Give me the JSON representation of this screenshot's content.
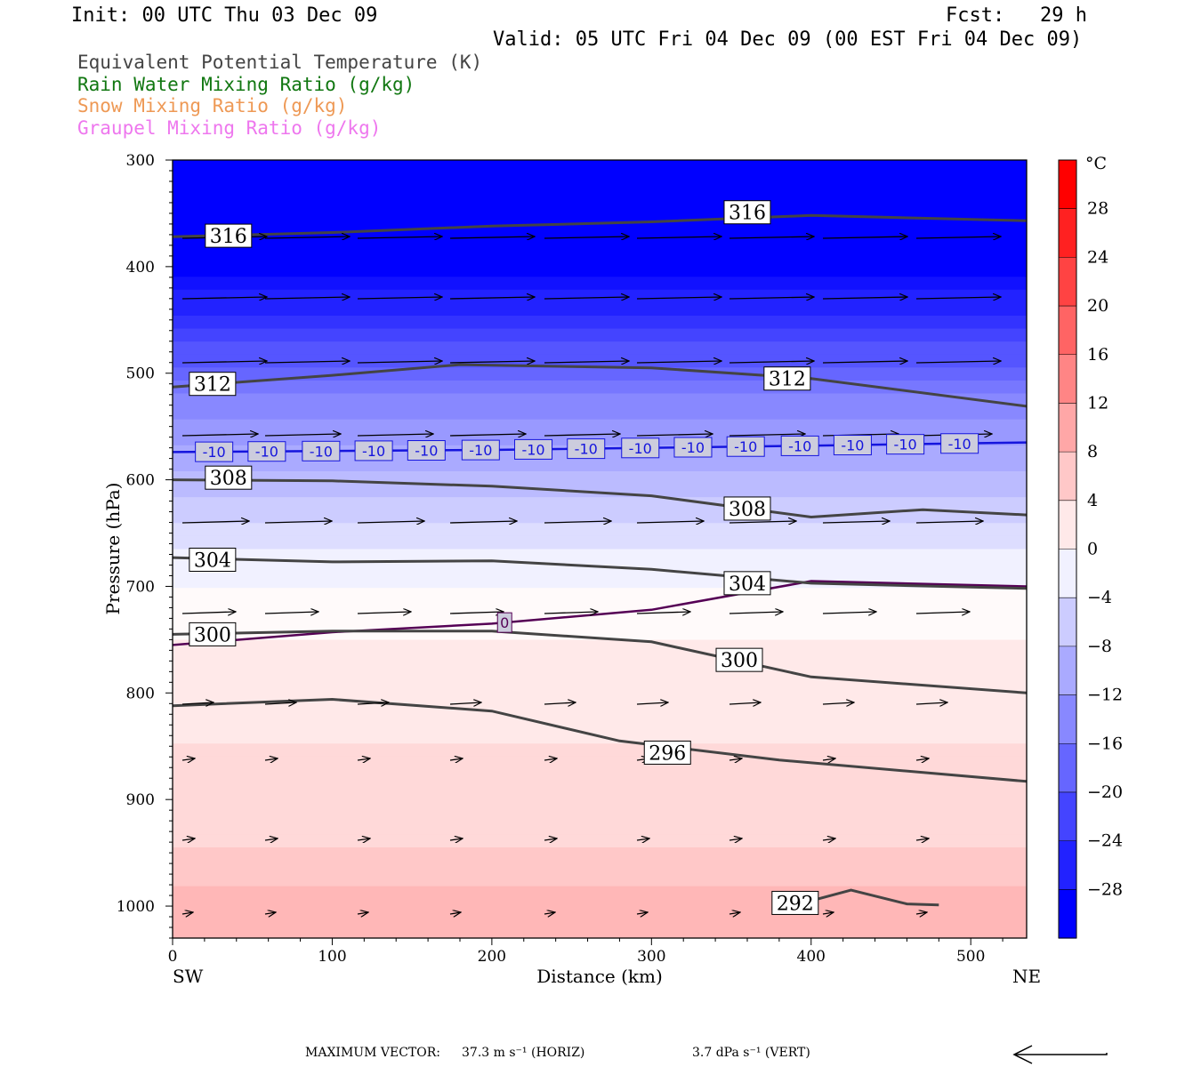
{
  "header": {
    "init": "Init: 00 UTC Thu 03 Dec 09",
    "fcst": "Fcst:   29 h",
    "valid": "Valid: 05 UTC Fri 04 Dec 09 (00 EST Fri 04 Dec 09)"
  },
  "legend": [
    {
      "label": "Equivalent Potential Temperature (K)",
      "color": "#444444"
    },
    {
      "label": "Rain Water Mixing Ratio (g/kg)",
      "color": "#117711"
    },
    {
      "label": "Snow Mixing Ratio (g/kg)",
      "color": "#ee9955"
    },
    {
      "label": "Graupel Mixing Ratio (g/kg)",
      "color": "#ee77ee"
    }
  ],
  "footer": {
    "max_vector_label": "MAXIMUM VECTOR:",
    "horiz": "37.3 m s⁻¹ (HORIZ)",
    "vert": "3.7 dPa s⁻¹ (VERT)"
  },
  "chart_data": {
    "type": "heatmap",
    "xlabel": "Distance (km)",
    "ylabel": "Pressure (hPa)",
    "xlim": [
      0,
      535
    ],
    "ylim": [
      1030,
      300
    ],
    "x_ticks": [
      0,
      100,
      200,
      300,
      400,
      500
    ],
    "y_ticks": [
      300,
      400,
      500,
      600,
      700,
      800,
      900,
      1000
    ],
    "x_end_labels": {
      "left": "SW",
      "right": "NE"
    },
    "colorbar": {
      "unit": "°C",
      "labels": [
        28,
        24,
        20,
        16,
        12,
        8,
        4,
        0,
        -4,
        -8,
        -12,
        -16,
        -20,
        -24,
        -28
      ]
    },
    "temperature_profile": [
      {
        "p": 300,
        "t": -32
      },
      {
        "p": 400,
        "t": -30
      },
      {
        "p": 450,
        "t": -24
      },
      {
        "p": 500,
        "t": -18
      },
      {
        "p": 550,
        "t": -12
      },
      {
        "p": 600,
        "t": -8
      },
      {
        "p": 650,
        "t": -4
      },
      {
        "p": 700,
        "t": -1
      },
      {
        "p": 750,
        "t": 1
      },
      {
        "p": 850,
        "t": 3
      },
      {
        "p": 950,
        "t": 5
      },
      {
        "p": 1000,
        "t": 8
      },
      {
        "p": 1030,
        "t": 9
      }
    ],
    "theta_e_contours": [
      {
        "label": "316",
        "points": [
          [
            0,
            372
          ],
          [
            100,
            368
          ],
          [
            200,
            362
          ],
          [
            300,
            358
          ],
          [
            400,
            352
          ],
          [
            535,
            357
          ]
        ],
        "labels_at": [
          [
            35,
            371
          ],
          [
            360,
            349
          ]
        ]
      },
      {
        "label": "312",
        "points": [
          [
            0,
            513
          ],
          [
            100,
            502
          ],
          [
            180,
            492
          ],
          [
            300,
            495
          ],
          [
            400,
            505
          ],
          [
            535,
            531
          ]
        ],
        "labels_at": [
          [
            25,
            510
          ],
          [
            385,
            505
          ]
        ]
      },
      {
        "label": "308",
        "points": [
          [
            0,
            600
          ],
          [
            100,
            601
          ],
          [
            200,
            606
          ],
          [
            300,
            615
          ],
          [
            400,
            635
          ],
          [
            470,
            628
          ],
          [
            535,
            633
          ]
        ],
        "labels_at": [
          [
            35,
            598
          ],
          [
            360,
            627
          ]
        ]
      },
      {
        "label": "304",
        "points": [
          [
            0,
            673
          ],
          [
            100,
            677
          ],
          [
            200,
            676
          ],
          [
            300,
            684
          ],
          [
            400,
            697
          ],
          [
            535,
            702
          ]
        ],
        "labels_at": [
          [
            25,
            675
          ],
          [
            360,
            697
          ]
        ]
      },
      {
        "label": "300",
        "points": [
          [
            0,
            745
          ],
          [
            100,
            742
          ],
          [
            200,
            742
          ],
          [
            300,
            752
          ],
          [
            400,
            785
          ],
          [
            535,
            800
          ]
        ],
        "labels_at": [
          [
            25,
            745
          ],
          [
            355,
            769
          ]
        ]
      },
      {
        "label": "296",
        "points": [
          [
            0,
            812
          ],
          [
            100,
            806
          ],
          [
            200,
            817
          ],
          [
            280,
            845
          ],
          [
            380,
            863
          ],
          [
            535,
            883
          ]
        ],
        "labels_at": [
          [
            310,
            856
          ]
        ]
      },
      {
        "label": "292",
        "points": [
          [
            380,
            1003
          ],
          [
            425,
            985
          ],
          [
            460,
            998
          ],
          [
            480,
            999
          ]
        ],
        "labels_at": [
          [
            390,
            997
          ]
        ]
      }
    ],
    "temperature_isotherms": [
      {
        "label": "-10",
        "color": "#1515dd",
        "points": [
          [
            0,
            574
          ],
          [
            200,
            572
          ],
          [
            400,
            568
          ],
          [
            535,
            565
          ]
        ]
      },
      {
        "label": "0",
        "color": "#550055",
        "points": [
          [
            0,
            755
          ],
          [
            100,
            743
          ],
          [
            200,
            735
          ],
          [
            300,
            722
          ],
          [
            400,
            695
          ],
          [
            535,
            700
          ]
        ]
      }
    ]
  }
}
